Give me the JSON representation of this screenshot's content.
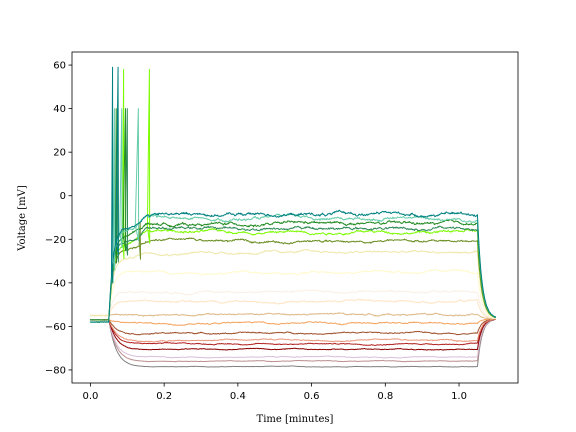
{
  "chart_data": {
    "type": "line",
    "xlabel": "Time [minutes]",
    "ylabel": "Voltage [mV]",
    "xlim": [
      -0.05,
      1.16
    ],
    "ylim": [
      -86,
      66
    ],
    "xticks": [
      0.0,
      0.2,
      0.4,
      0.6,
      0.8,
      1.0
    ],
    "xtick_labels": [
      "0.0",
      "0.2",
      "0.4",
      "0.6",
      "0.8",
      "1.0"
    ],
    "yticks": [
      60,
      40,
      20,
      0,
      -20,
      -40,
      -60,
      -80
    ],
    "ytick_labels": [
      "60",
      "40",
      "20",
      "0",
      "−20",
      "−40",
      "−60",
      "−80"
    ],
    "grid": false,
    "stim_on": 0.05,
    "stim_off": 1.05,
    "t_end": 1.1,
    "series": [
      {
        "color": "#808080",
        "baseline": -57,
        "plateau": -78.5,
        "spike_times": [],
        "spike_peak": null
      },
      {
        "color": "#bc8f8f",
        "baseline": -57,
        "plateau": -76,
        "spike_times": [],
        "spike_peak": null
      },
      {
        "color": "#d8bfd8",
        "baseline": -57,
        "plateau": -74,
        "spike_times": [],
        "spike_peak": null
      },
      {
        "color": "#8b0000",
        "baseline": -57,
        "plateau": -70.5,
        "spike_times": [],
        "spike_peak": null
      },
      {
        "color": "#b22222",
        "baseline": -57,
        "plateau": -68,
        "spike_times": [],
        "spike_peak": null
      },
      {
        "color": "#e9967a",
        "baseline": -57,
        "plateau": -66.5,
        "spike_times": [],
        "spike_peak": null
      },
      {
        "color": "#a0522d",
        "baseline": -57,
        "plateau": -63,
        "spike_times": [],
        "spike_peak": null
      },
      {
        "color": "#f4a460",
        "baseline": -57,
        "plateau": -58.5,
        "spike_times": [],
        "spike_peak": null
      },
      {
        "color": "#deb887",
        "baseline": -55,
        "plateau": -54.5,
        "spike_times": [],
        "spike_peak": null
      },
      {
        "color": "#ffe4c4",
        "baseline": -55,
        "plateau": -48.5,
        "spike_times": [],
        "spike_peak": null
      },
      {
        "color": "#faf0e6",
        "baseline": -55,
        "plateau": -44,
        "spike_times": [],
        "spike_peak": null
      },
      {
        "color": "#fffacd",
        "baseline": -55,
        "plateau": -35,
        "spike_times": [],
        "spike_peak": null
      },
      {
        "color": "#eee8aa",
        "baseline": -55,
        "plateau": -26,
        "spike_times": [],
        "spike_peak": null
      },
      {
        "color": "#6b8e23",
        "baseline": -57,
        "plateau": -21,
        "spike_times": [
          0.135
        ],
        "spike_peak": -12
      },
      {
        "color": "#7cfc00",
        "baseline": -57,
        "plateau": -16.5,
        "spike_times": [
          0.09,
          0.16
        ],
        "spike_peak": 58
      },
      {
        "color": "#2e8b57",
        "baseline": -57,
        "plateau": -15,
        "spike_times": [
          0.075,
          0.1
        ],
        "spike_peak": 40
      },
      {
        "color": "#228b22",
        "baseline": -58,
        "plateau": -13,
        "spike_times": [
          0.07,
          0.095
        ],
        "spike_peak": 40
      },
      {
        "color": "#66cdaa",
        "baseline": -58,
        "plateau": -10.5,
        "spike_times": [
          0.065,
          0.085,
          0.13
        ],
        "spike_peak": 40
      },
      {
        "color": "#008080",
        "baseline": -58,
        "plateau": -8.5,
        "spike_times": [
          0.06,
          0.075
        ],
        "spike_peak": 59
      }
    ]
  }
}
